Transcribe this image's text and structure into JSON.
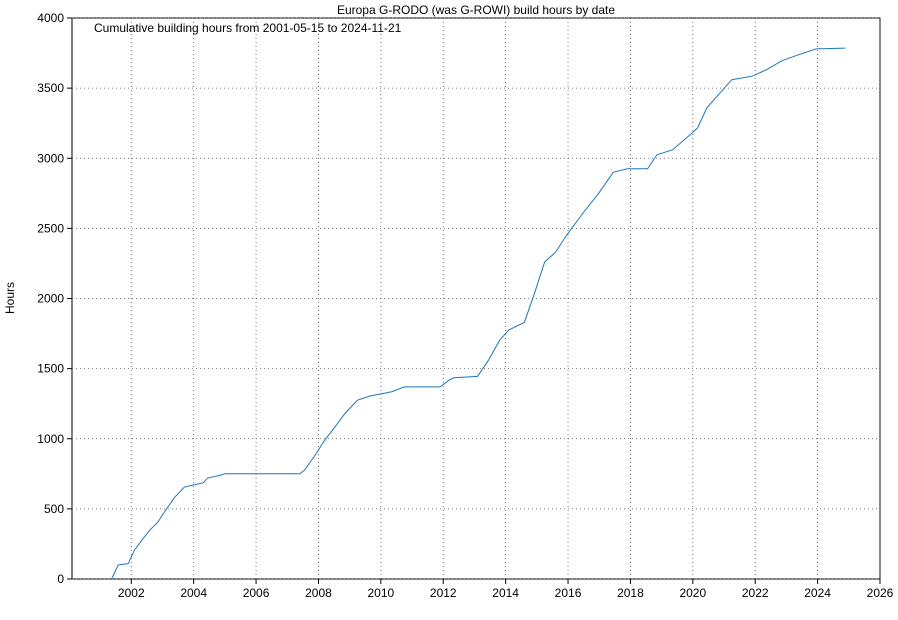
{
  "chart_data": {
    "type": "line",
    "title": "Europa G-RODO (was G-ROWI) build hours by date",
    "annotation": "Cumulative building hours from 2001-05-15 to 2024-11-21",
    "y_label": "Hours",
    "x": [
      2001.37,
      2001.58,
      2001.9,
      2002.1,
      2002.35,
      2002.6,
      2002.85,
      2003.1,
      2003.4,
      2003.7,
      2003.98,
      2004.3,
      2004.45,
      2004.85,
      2005.0,
      2007.4,
      2007.55,
      2007.9,
      2008.2,
      2008.5,
      2008.85,
      2009.25,
      2009.65,
      2010.35,
      2010.75,
      2011.9,
      2012.2,
      2012.35,
      2013.1,
      2013.45,
      2013.8,
      2014.1,
      2014.6,
      2014.9,
      2015.25,
      2015.6,
      2015.95,
      2016.5,
      2016.95,
      2017.45,
      2017.9,
      2018.55,
      2018.85,
      2019.35,
      2019.8,
      2020.15,
      2020.45,
      2020.95,
      2021.25,
      2021.9,
      2022.35,
      2022.85,
      2023.35,
      2023.95,
      2024.89
    ],
    "series": [
      {
        "name": "Hours",
        "color": "#1f77b4",
        "values": [
          0,
          100,
          110,
          205,
          280,
          350,
          405,
          490,
          585,
          655,
          670,
          685,
          720,
          740,
          750,
          750,
          775,
          885,
          990,
          1075,
          1180,
          1275,
          1305,
          1335,
          1370,
          1370,
          1420,
          1435,
          1445,
          1560,
          1700,
          1775,
          1830,
          2020,
          2260,
          2330,
          2450,
          2615,
          2740,
          2900,
          2925,
          2925,
          3025,
          3060,
          3145,
          3215,
          3360,
          3485,
          3560,
          3585,
          3630,
          3695,
          3735,
          3780,
          3785
        ]
      }
    ],
    "xlim": [
      2000.1,
      2026
    ],
    "xticks": [
      2002,
      2004,
      2006,
      2008,
      2010,
      2012,
      2014,
      2016,
      2018,
      2020,
      2022,
      2024,
      2026
    ],
    "ylim": [
      0,
      4000
    ],
    "yticks": [
      0,
      500,
      1000,
      1500,
      2000,
      2500,
      3000,
      3500,
      4000
    ],
    "grid": true
  }
}
